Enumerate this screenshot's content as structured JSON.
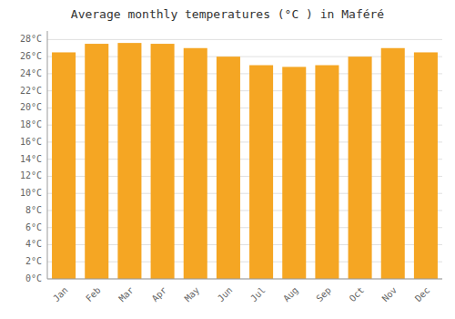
{
  "chart_data": {
    "type": "bar",
    "title": "Average monthly temperatures (°C ) in Maféré",
    "categories": [
      "Jan",
      "Feb",
      "Mar",
      "Apr",
      "May",
      "Jun",
      "Jul",
      "Aug",
      "Sep",
      "Oct",
      "Nov",
      "Dec"
    ],
    "values": [
      26.5,
      27.5,
      27.6,
      27.5,
      27.0,
      26.0,
      25.0,
      24.8,
      25.0,
      26.0,
      27.0,
      26.5
    ],
    "color": "#F5A623",
    "ylim": [
      0,
      29
    ],
    "yticks": [
      {
        "value": 0,
        "label": "0°C"
      },
      {
        "value": 2,
        "label": "2°C"
      },
      {
        "value": 4,
        "label": "4°C"
      },
      {
        "value": 6,
        "label": "6°C"
      },
      {
        "value": 8,
        "label": "8°C"
      },
      {
        "value": 10,
        "label": "10°C"
      },
      {
        "value": 12,
        "label": "12°C"
      },
      {
        "value": 14,
        "label": "14°C"
      },
      {
        "value": 16,
        "label": "16°C"
      },
      {
        "value": 18,
        "label": "18°C"
      },
      {
        "value": 20,
        "label": "20°C"
      },
      {
        "value": 22,
        "label": "22°C"
      },
      {
        "value": 24,
        "label": "24°C"
      },
      {
        "value": 26,
        "label": "26°C"
      },
      {
        "value": 28,
        "label": "28°C"
      }
    ],
    "grid": true
  }
}
